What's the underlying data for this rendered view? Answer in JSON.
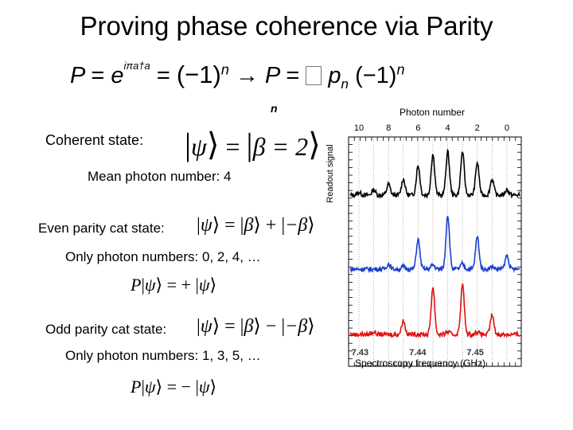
{
  "slide": {
    "title": "Proving phase coherence via Parity"
  },
  "equations": {
    "parity_operator": {
      "P": "P",
      "eq": "=",
      "e": "e",
      "exponent": "iπa†a",
      "minus_one": "(−1)",
      "n": "n",
      "arrow": "→",
      "P2": "P",
      "eq2": "=",
      "p_n": "p",
      "p_sub": "n",
      "minus_one2": "(−1)",
      "n2": "n",
      "sum_index": "n"
    },
    "coherent": {
      "psi": "ψ",
      "eq": "=",
      "beta": "β = 2"
    },
    "even_cat": {
      "psi": "ψ",
      "eq": "=",
      "beta1": "β",
      "plus": "+",
      "beta2": "−β"
    },
    "even_parity": {
      "P": "P",
      "psi": "ψ",
      "eq": "= +",
      "psi2": "ψ"
    },
    "odd_cat": {
      "psi": "ψ",
      "eq": "=",
      "beta1": "β",
      "minus": "−",
      "beta2": "−β"
    },
    "odd_parity": {
      "P": "P",
      "psi": "ψ",
      "eq": "= −",
      "psi2": "ψ"
    }
  },
  "labels": {
    "coherent_state": "Coherent state:",
    "mean_photon_number": "Mean photon number: 4",
    "even_parity_cat": "Even parity cat state:",
    "even_only": "Only photon numbers: 0, 2, 4, …",
    "odd_parity_cat": "Odd parity cat state:",
    "odd_only": "Only photon numbers: 1, 3, 5, …"
  },
  "chart_data": {
    "type": "line",
    "title": "",
    "top_axis_label": "Photon number",
    "top_ticks": [
      "10",
      "8",
      "6",
      "4",
      "2",
      "0"
    ],
    "xlabel": "Spectroscopy frequency (GHz)",
    "ylabel": "Readout signal",
    "x_ticks": [
      "7.43",
      "7.44",
      "7.45"
    ],
    "xlim": [
      7.428,
      7.458
    ],
    "grid": "vertical dotted lines at photon-number peaks",
    "peak_positions_photon_number": [
      10,
      9,
      8,
      7,
      6,
      5,
      4,
      3,
      2,
      1,
      0
    ],
    "series": [
      {
        "name": "",
        "color": "#000000",
        "peaks_by_photon_number": {
          "10": 0.05,
          "9": 0.1,
          "8": 0.2,
          "7": 0.3,
          "6": 0.55,
          "5": 0.75,
          "4": 0.8,
          "3": 0.8,
          "2": 0.6,
          "1": 0.3,
          "0": 0.1
        }
      },
      {
        "name": "",
        "color": "#1a3fd0",
        "peaks_by_photon_number": {
          "10": 0.0,
          "9": 0.0,
          "8": 0.1,
          "7": 0.05,
          "6": 0.55,
          "5": 0.08,
          "4": 1.0,
          "3": 0.1,
          "2": 0.6,
          "1": 0.05,
          "0": 0.25
        }
      },
      {
        "name": "",
        "color": "#e01010",
        "peaks_by_photon_number": {
          "10": 0.0,
          "9": 0.05,
          "8": 0.0,
          "7": 0.25,
          "6": 0.0,
          "5": 0.85,
          "4": 0.05,
          "3": 0.9,
          "2": 0.05,
          "1": 0.35,
          "0": 0.0
        }
      }
    ]
  }
}
